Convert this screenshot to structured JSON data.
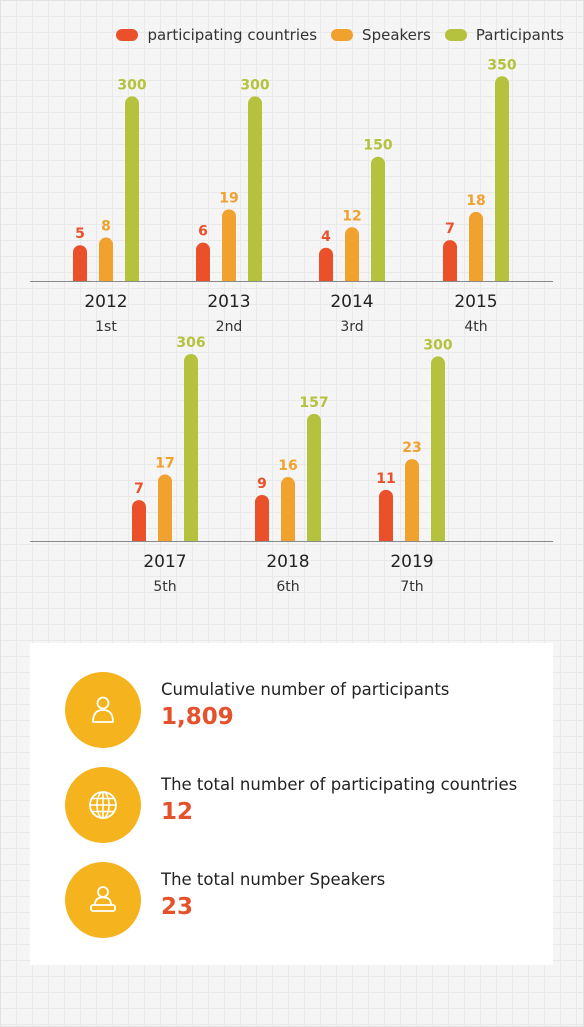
{
  "colors": {
    "countries": "#ea512a",
    "speakers": "#f0a12e",
    "participants": "#b5c23d",
    "accent": "#e4512a",
    "icon_bg": "#f5b41e"
  },
  "legend": [
    {
      "label": "participating countries",
      "color": "#ea512a"
    },
    {
      "label": "Speakers",
      "color": "#f0a12e"
    },
    {
      "label": "Participants",
      "color": "#b5c23d"
    }
  ],
  "chart_data": {
    "type": "bar",
    "series": [
      {
        "name": "participating countries",
        "values": [
          5,
          6,
          4,
          7,
          7,
          9,
          11
        ]
      },
      {
        "name": "Speakers",
        "values": [
          8,
          19,
          12,
          18,
          17,
          16,
          23
        ]
      },
      {
        "name": "Participants",
        "values": [
          300,
          300,
          150,
          350,
          306,
          157,
          300
        ]
      }
    ],
    "groups": [
      {
        "year": "2012",
        "edition": "1st",
        "countries": 5,
        "speakers": 8,
        "participants": 300
      },
      {
        "year": "2013",
        "edition": "2nd",
        "countries": 6,
        "speakers": 19,
        "participants": 300
      },
      {
        "year": "2014",
        "edition": "3rd",
        "countries": 4,
        "speakers": 12,
        "participants": 150
      },
      {
        "year": "2015",
        "edition": "4th",
        "countries": 7,
        "speakers": 18,
        "participants": 350
      },
      {
        "year": "2017",
        "edition": "5th",
        "countries": 7,
        "speakers": 17,
        "participants": 306
      },
      {
        "year": "2018",
        "edition": "6th",
        "countries": 9,
        "speakers": 16,
        "participants": 157
      },
      {
        "year": "2019",
        "edition": "7th",
        "countries": 11,
        "speakers": 23,
        "participants": 300
      }
    ]
  },
  "stats": [
    {
      "icon": "user-icon",
      "label": "Cumulative number of participants",
      "value": "1,809"
    },
    {
      "icon": "globe-icon",
      "label": "The total number of participating countries",
      "value": "12"
    },
    {
      "icon": "speaker-icon",
      "label": "The total number Speakers",
      "value": "23"
    }
  ]
}
